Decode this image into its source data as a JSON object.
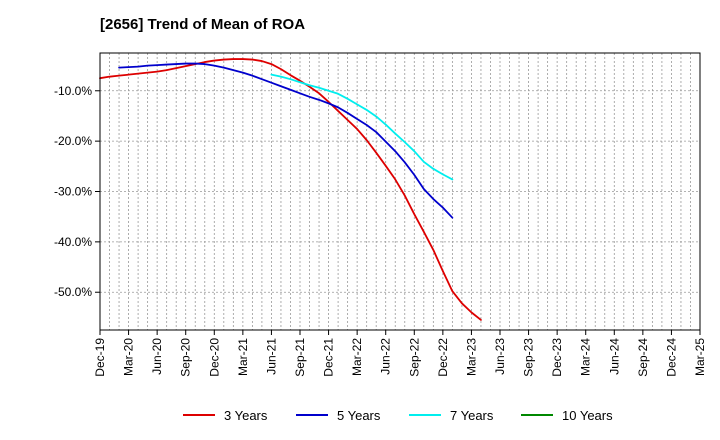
{
  "chart_data": {
    "type": "line",
    "title": "[2656]  Trend of Mean of ROA",
    "xlabel": "",
    "ylabel": "",
    "ylim": [
      -57.5,
      -2.5
    ],
    "y_ticks": [
      -10,
      -20,
      -30,
      -40,
      -50
    ],
    "y_tick_labels": [
      "-10.0%",
      "-20.0%",
      "-30.0%",
      "-40.0%",
      "-50.0%"
    ],
    "x_tick_labels": [
      "Dec-19",
      "Mar-20",
      "Jun-20",
      "Sep-20",
      "Dec-20",
      "Mar-21",
      "Jun-21",
      "Sep-21",
      "Dec-21",
      "Mar-22",
      "Jun-22",
      "Sep-22",
      "Dec-22",
      "Mar-23",
      "Jun-23",
      "Sep-23",
      "Dec-23",
      "Mar-24",
      "Jun-24",
      "Sep-24",
      "Dec-24",
      "Mar-25"
    ],
    "grid": true,
    "legend_position": "bottom",
    "series": [
      {
        "name": "3 Years",
        "color": "#dd0000",
        "start_index": 0,
        "values": [
          -7.5,
          -7.2,
          -7.0,
          -6.8,
          -6.6,
          -6.4,
          -6.2,
          -5.9,
          -5.5,
          -5.1,
          -4.7,
          -4.3,
          -4.0,
          -3.8,
          -3.7,
          -3.7,
          -3.8,
          -4.1,
          -4.7,
          -5.7,
          -6.9,
          -8.0,
          -9.2,
          -10.5,
          -12.2,
          -14.0,
          -15.8,
          -17.6,
          -19.8,
          -22.3,
          -24.9,
          -27.6,
          -30.8,
          -34.5,
          -38.0,
          -41.6,
          -45.8,
          -49.8,
          -52.2,
          -54.0,
          -55.5
        ]
      },
      {
        "name": "5 Years",
        "color": "#0000cc",
        "start_index": 2,
        "values": [
          -5.4,
          -5.3,
          -5.2,
          -5.0,
          -4.9,
          -4.8,
          -4.7,
          -4.6,
          -4.6,
          -4.7,
          -5.0,
          -5.4,
          -5.9,
          -6.4,
          -7.0,
          -7.7,
          -8.4,
          -9.1,
          -9.8,
          -10.5,
          -11.2,
          -11.8,
          -12.5,
          -13.3,
          -14.4,
          -15.6,
          -16.8,
          -18.2,
          -20.1,
          -22.0,
          -24.2,
          -26.7,
          -29.5,
          -31.5,
          -33.2,
          -35.2
        ]
      },
      {
        "name": "7 Years",
        "color": "#00eeee",
        "start_index": 18,
        "values": [
          -6.8,
          -7.2,
          -7.7,
          -8.3,
          -8.9,
          -9.4,
          -10.0,
          -10.6,
          -11.6,
          -12.7,
          -13.8,
          -15.1,
          -16.7,
          -18.5,
          -20.2,
          -22.0,
          -24.1,
          -25.5,
          -26.6,
          -27.6
        ]
      },
      {
        "name": "10 Years",
        "color": "#008800",
        "start_index": 0,
        "values": []
      }
    ]
  }
}
